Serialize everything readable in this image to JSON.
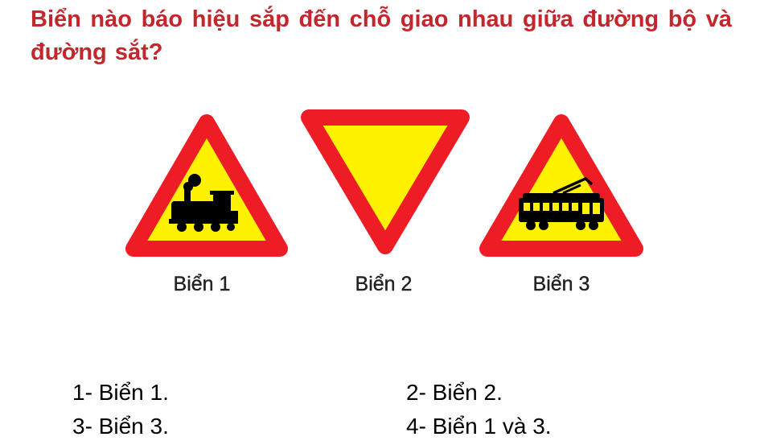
{
  "question": {
    "text": "Biển nào báo hiệu sắp đến chỗ giao nhau giữa đường bộ và đường sắt?"
  },
  "signs": [
    {
      "label": "Biển 1",
      "icon": "steam-locomotive-icon"
    },
    {
      "label": "Biển 2",
      "icon": "inverted-triangle-icon"
    },
    {
      "label": "Biển 3",
      "icon": "tram-icon"
    }
  ],
  "options": [
    {
      "text": "1- Biển 1."
    },
    {
      "text": "2- Biển 2."
    },
    {
      "text": "3- Biển 3."
    },
    {
      "text": "4- Biển 1 và 3."
    }
  ],
  "colors": {
    "question": "#c1272d",
    "sign_border": "#ee1c25",
    "sign_fill": "#fff200",
    "symbol": "#000000"
  }
}
